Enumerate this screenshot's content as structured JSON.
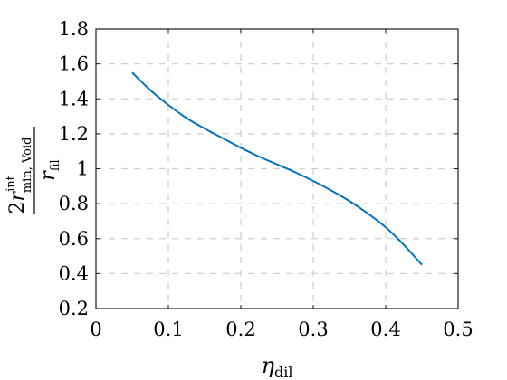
{
  "chart_data": {
    "type": "line",
    "title": "",
    "xlabel": {
      "main": "η",
      "sub": "dil"
    },
    "ylabel": {
      "numerator_prefix": "2",
      "numerator_var": "r",
      "numerator_sup": "int",
      "numerator_sub": "min, Void",
      "denominator_var": "r",
      "denominator_sub": "fil"
    },
    "xlim": [
      0,
      0.5
    ],
    "ylim": [
      0.2,
      1.8
    ],
    "xticks": [
      0,
      0.1,
      0.2,
      0.3,
      0.4,
      0.5
    ],
    "xtick_labels": [
      "0",
      "0.1",
      "0.2",
      "0.3",
      "0.4",
      "0.5"
    ],
    "yticks": [
      0.2,
      0.4,
      0.6,
      0.8,
      1.0,
      1.2,
      1.4,
      1.6,
      1.8
    ],
    "ytick_labels": [
      "0.2",
      "0.4",
      "0.6",
      "0.8",
      "1",
      "1.2",
      "1.4",
      "1.6",
      "1.8"
    ],
    "grid": true,
    "series": [
      {
        "color": "#0072BD",
        "x": [
          0.05,
          0.075,
          0.1,
          0.125,
          0.15,
          0.175,
          0.2,
          0.225,
          0.25,
          0.275,
          0.3,
          0.325,
          0.35,
          0.375,
          0.4,
          0.425,
          0.45
        ],
        "y": [
          1.55,
          1.45,
          1.365,
          1.29,
          1.23,
          1.175,
          1.12,
          1.07,
          1.025,
          0.98,
          0.93,
          0.875,
          0.815,
          0.745,
          0.665,
          0.565,
          0.45
        ]
      }
    ]
  }
}
